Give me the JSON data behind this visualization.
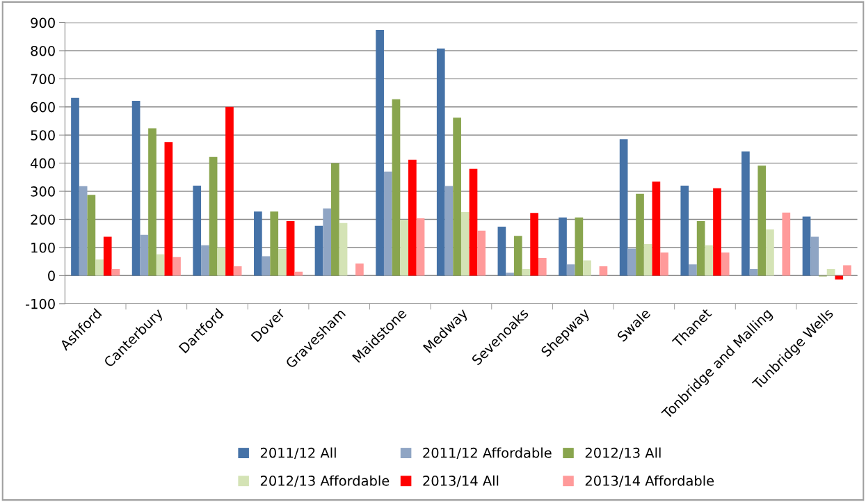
{
  "chart_data": {
    "type": "bar",
    "categories": [
      "Ashford",
      "Canterbury",
      "Dartford",
      "Dover",
      "Gravesham",
      "Maidstone",
      "Medway",
      "Sevenoaks",
      "Shepway",
      "Swale",
      "Thanet",
      "Tonbridge and Malling",
      "Tunbridge Wells"
    ],
    "series": [
      {
        "name": "2011/12 All",
        "color": "#4572a7",
        "values": [
          632,
          622,
          320,
          228,
          177,
          874,
          808,
          174,
          207,
          485,
          320,
          442,
          210
        ]
      },
      {
        "name": "2011/12 Affordable",
        "color": "#8fa5c4",
        "values": [
          318,
          145,
          108,
          69,
          239,
          370,
          319,
          10,
          40,
          96,
          40,
          23,
          138
        ]
      },
      {
        "name": "2012/13 All",
        "color": "#89a54e",
        "values": [
          287,
          524,
          422,
          228,
          400,
          627,
          562,
          141,
          207,
          291,
          194,
          391,
          -3
        ]
      },
      {
        "name": "2012/13 Affordable",
        "color": "#d4e3b5",
        "values": [
          57,
          76,
          100,
          95,
          187,
          198,
          226,
          23,
          54,
          112,
          108,
          164,
          23
        ]
      },
      {
        "name": "2013/14 All",
        "color": "#ff0000",
        "values": [
          138,
          475,
          600,
          194,
          0,
          412,
          380,
          223,
          0,
          334,
          311,
          0,
          -14
        ]
      },
      {
        "name": "2013/14 Affordable",
        "color": "#ff9a9a",
        "values": [
          23,
          66,
          33,
          14,
          43,
          204,
          160,
          63,
          33,
          82,
          82,
          224,
          37
        ]
      }
    ],
    "ylim": [
      -100,
      900
    ],
    "yticks": [
      -100,
      0,
      100,
      200,
      300,
      400,
      500,
      600,
      700,
      800,
      900
    ],
    "grid": "y",
    "legend": "bottom"
  }
}
